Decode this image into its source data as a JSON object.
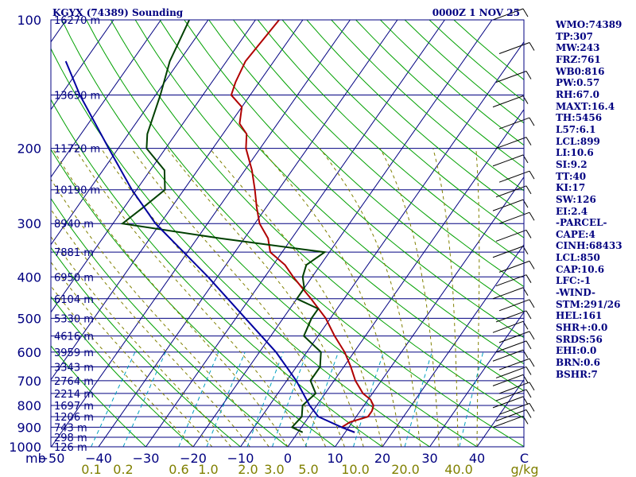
{
  "header": {
    "station": "KGYX (74389) Sounding",
    "time": "0000Z  1 NOV 25"
  },
  "pressure_labels": [
    "100",
    "200",
    "300",
    "400",
    "500",
    "600",
    "700",
    "800",
    "900",
    "1000"
  ],
  "height_labels": [
    "16270 m",
    "13650 m",
    "11720 m",
    "10190 m",
    "8940 m",
    "7881 m",
    "6950 m",
    "6104 m",
    "5330 m",
    "4616 m",
    "3959 m",
    "3343 m",
    "2764 m",
    "2214 m",
    "1697 m",
    "1206 m",
    "743 m",
    "298 m",
    "126 m"
  ],
  "temp_labels": [
    "−50",
    "−40",
    "−30",
    "−20",
    "−10",
    "0",
    "10",
    "20",
    "30",
    "40",
    "C"
  ],
  "mixing_labels": [
    "0.1",
    "0.2",
    "0.6",
    "1.0",
    "2.0",
    "3.0",
    "5.0",
    "10.0",
    "20.0",
    "40.0",
    "g/kg"
  ],
  "corner_label": "mb",
  "indices": [
    "WMO:74389",
    "TP:307",
    "MW:243",
    "FRZ:761",
    "WB0:816",
    "PW:0.57",
    "RH:67.0",
    "MAXT:16.4",
    "TH:5456",
    "L57:6.1",
    "LCL:899",
    "LI:10.6",
    "SI:9.2",
    "TT:40",
    "KI:17",
    "SW:126",
    "EI:2.4",
    "-PARCEL-",
    "CAPE:4",
    "CINH:68433",
    "LCL:850",
    "CAP:10.6",
    "LFC:-1",
    "-WIND-",
    "STM:291/26",
    "HEL:161",
    "SHR+:0.0",
    "SRDS:56",
    "EHI:0.0",
    "BRN:0.6",
    "BSHR:7"
  ],
  "colors": {
    "frame": "#000080",
    "isobar": "#000080",
    "isotherm": "#000080",
    "dry_adiabat": "#00a000",
    "moist_adiabat": "#808000",
    "mixing_ratio": "#00a0c0",
    "temperature": "#b00000",
    "dewpoint": "#004000",
    "parcel": "#0000a0",
    "barbs": "#000000"
  },
  "chart_data": {
    "type": "skew-t",
    "pressure_range_mb": [
      100,
      1000
    ],
    "temp_range_c": [
      -50,
      50
    ],
    "isobars_mb": [
      100,
      150,
      200,
      250,
      300,
      350,
      400,
      450,
      500,
      550,
      600,
      650,
      700,
      750,
      800,
      850,
      900,
      950,
      1000
    ],
    "temperature": [
      {
        "p": 925,
        "t": 12.0
      },
      {
        "p": 900,
        "t": 8.5
      },
      {
        "p": 875,
        "t": 9.5
      },
      {
        "p": 850,
        "t": 12.5
      },
      {
        "p": 825,
        "t": 12.5
      },
      {
        "p": 800,
        "t": 12.0
      },
      {
        "p": 775,
        "t": 10.5
      },
      {
        "p": 750,
        "t": 8.0
      },
      {
        "p": 700,
        "t": 4.5
      },
      {
        "p": 650,
        "t": 1.5
      },
      {
        "p": 600,
        "t": -2.0
      },
      {
        "p": 550,
        "t": -6.5
      },
      {
        "p": 500,
        "t": -11.0
      },
      {
        "p": 450,
        "t": -17.0
      },
      {
        "p": 400,
        "t": -24.0
      },
      {
        "p": 375,
        "t": -27.5
      },
      {
        "p": 350,
        "t": -32.5
      },
      {
        "p": 325,
        "t": -35.0
      },
      {
        "p": 300,
        "t": -39.0
      },
      {
        "p": 275,
        "t": -42.0
      },
      {
        "p": 250,
        "t": -45.0
      },
      {
        "p": 225,
        "t": -48.5
      },
      {
        "p": 200,
        "t": -53.0
      },
      {
        "p": 185,
        "t": -55.0
      },
      {
        "p": 175,
        "t": -58.0
      },
      {
        "p": 160,
        "t": -60.0
      },
      {
        "p": 150,
        "t": -64.0
      },
      {
        "p": 140,
        "t": -65.0
      },
      {
        "p": 125,
        "t": -66.0
      },
      {
        "p": 100,
        "t": -65.0
      }
    ],
    "dewpoint": [
      {
        "p": 925,
        "t": 1.0
      },
      {
        "p": 900,
        "t": -2.0
      },
      {
        "p": 850,
        "t": -1.5
      },
      {
        "p": 800,
        "t": -3.0
      },
      {
        "p": 750,
        "t": -2.0
      },
      {
        "p": 700,
        "t": -5.0
      },
      {
        "p": 650,
        "t": -5.0
      },
      {
        "p": 600,
        "t": -7.0
      },
      {
        "p": 550,
        "t": -13.0
      },
      {
        "p": 500,
        "t": -14.0
      },
      {
        "p": 475,
        "t": -14.0
      },
      {
        "p": 450,
        "t": -20.0
      },
      {
        "p": 425,
        "t": -20.0
      },
      {
        "p": 400,
        "t": -22.0
      },
      {
        "p": 375,
        "t": -23.0
      },
      {
        "p": 350,
        "t": -21.0
      },
      {
        "p": 325,
        "t": -45.0
      },
      {
        "p": 300,
        "t": -68.0
      },
      {
        "p": 275,
        "t": -66.0
      },
      {
        "p": 250,
        "t": -64.0
      },
      {
        "p": 225,
        "t": -67.0
      },
      {
        "p": 200,
        "t": -74.0
      },
      {
        "p": 185,
        "t": -76.0
      },
      {
        "p": 150,
        "t": -79.0
      },
      {
        "p": 125,
        "t": -82.0
      },
      {
        "p": 100,
        "t": -84.0
      }
    ],
    "parcel": [
      {
        "p": 925,
        "t": 12.0
      },
      {
        "p": 900,
        "t": 8.5
      },
      {
        "p": 850,
        "t": 2.0
      },
      {
        "p": 800,
        "t": -1.5
      },
      {
        "p": 700,
        "t": -8.0
      },
      {
        "p": 600,
        "t": -16.5
      },
      {
        "p": 500,
        "t": -28.0
      },
      {
        "p": 400,
        "t": -42.0
      },
      {
        "p": 300,
        "t": -61.0
      },
      {
        "p": 250,
        "t": -71.0
      },
      {
        "p": 200,
        "t": -82.0
      },
      {
        "p": 150,
        "t": -96.0
      },
      {
        "p": 125,
        "t": -104.0
      }
    ],
    "wind_levels_mb": [
      900,
      870,
      840,
      810,
      780,
      750,
      720,
      690,
      660,
      630,
      600,
      570,
      540,
      510,
      480,
      450,
      420,
      390,
      360,
      330,
      300,
      280,
      260,
      240,
      220,
      200,
      180,
      160,
      140,
      120,
      100
    ],
    "title": "KGYX (74389) Sounding",
    "ylabel": "mb",
    "xlabel": "C"
  }
}
